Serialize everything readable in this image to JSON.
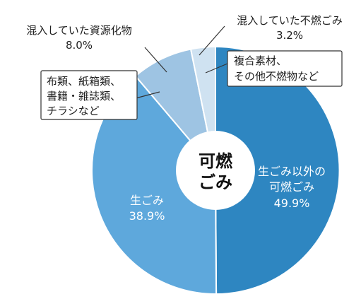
{
  "chart_data": {
    "type": "pie",
    "center_label_lines": [
      "可燃",
      "ごみ"
    ],
    "slices": [
      {
        "key": "other_burnable",
        "label_lines": [
          "生ごみ以外の",
          "可燃ごみ"
        ],
        "value_text": "49.9%",
        "value": 49.9,
        "color": "#2e86c1",
        "label_color": "#ffffff"
      },
      {
        "key": "food_waste",
        "label_lines": [
          "生ごみ"
        ],
        "value_text": "38.9%",
        "value": 38.9,
        "color": "#5ea8dc",
        "label_color": "#ffffff"
      },
      {
        "key": "resources",
        "label_lines": [
          "混入していた資源化物"
        ],
        "value_text": "8.0%",
        "value": 8.0,
        "color": "#9ec4e3",
        "label_color": "#1f1f1f"
      },
      {
        "key": "nonburnable",
        "label_lines": [
          "混入していた不燃ごみ"
        ],
        "value_text": "3.2%",
        "value": 3.2,
        "color": "#cfe2f1",
        "label_color": "#1f1f1f"
      }
    ],
    "callouts": [
      {
        "key": "resources_detail",
        "lines": [
          "布類、紙箱類、",
          "書籍・雑誌類、",
          "チラシなど"
        ]
      },
      {
        "key": "nonburnable_detail",
        "lines": [
          "複合素材、",
          "その他不燃物など"
        ]
      }
    ]
  }
}
